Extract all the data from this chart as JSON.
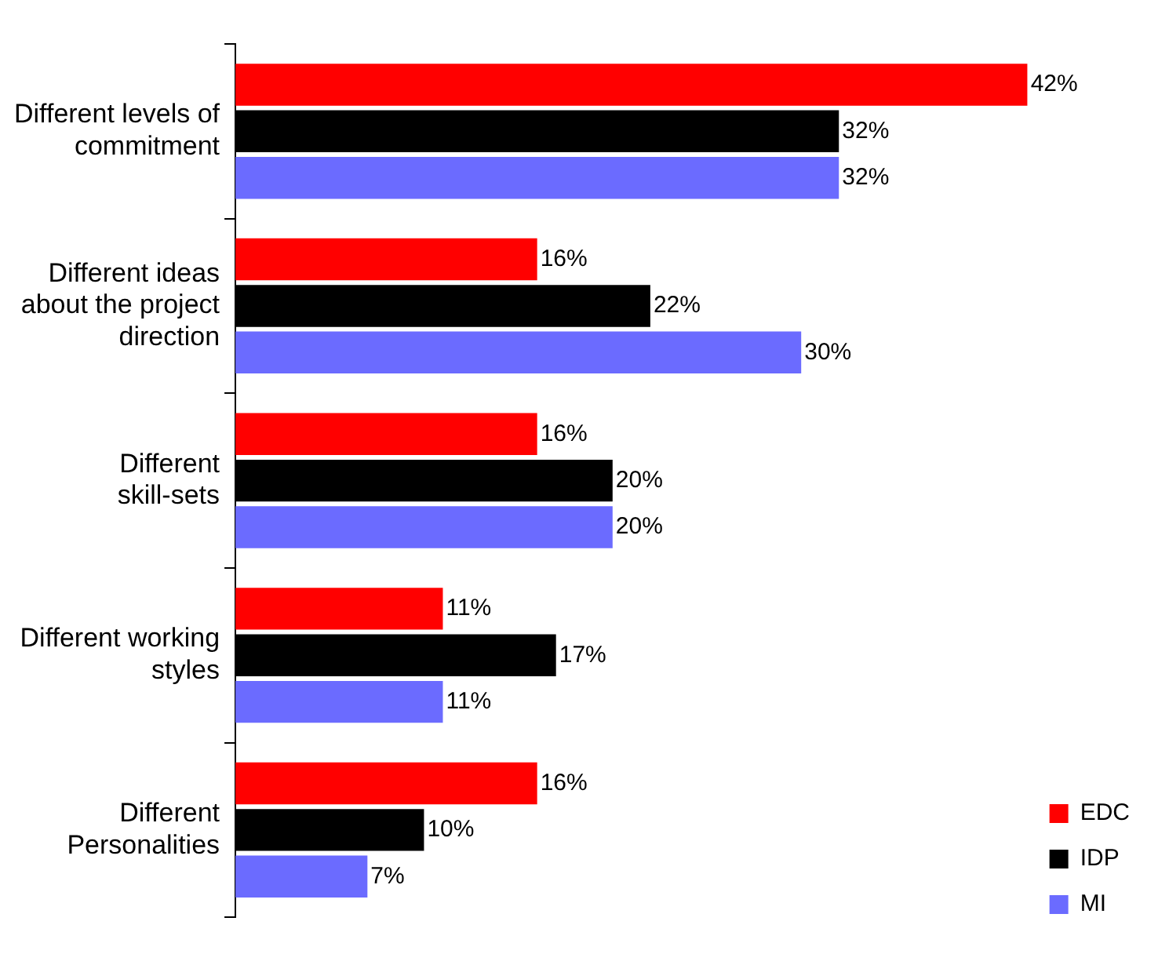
{
  "chart_data": {
    "type": "bar",
    "orientation": "horizontal",
    "categories": [
      "Different levels of commitment",
      "Different ideas about the project direction",
      "Different skill-sets",
      "Different working styles",
      "Different Personalities"
    ],
    "series": [
      {
        "name": "EDC",
        "color": "#ff0000",
        "values": [
          42,
          16,
          16,
          11,
          16
        ],
        "value_labels": [
          "42%",
          "16%",
          "16%",
          "11%",
          "16%"
        ]
      },
      {
        "name": "IDP",
        "color": "#000000",
        "values": [
          32,
          22,
          20,
          17,
          10
        ],
        "value_labels": [
          "32%",
          "22%",
          "20%",
          "17%",
          "10%"
        ]
      },
      {
        "name": "MI",
        "color": "#6b6bff",
        "values": [
          32,
          30,
          20,
          11,
          7
        ],
        "value_labels": [
          "32%",
          "30%",
          "20%",
          "11%",
          "7%"
        ]
      }
    ],
    "legend": "bottom right"
  }
}
